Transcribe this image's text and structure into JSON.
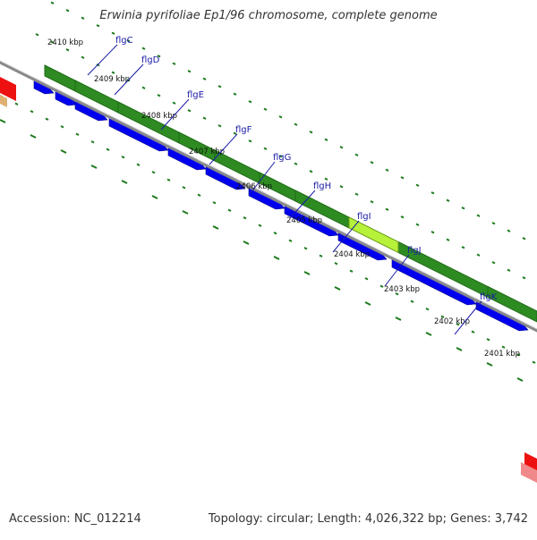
{
  "title": "Erwinia pyrifoliae Ep1/96 chromosome, complete genome",
  "footer": {
    "accession": "Accession: NC_012214",
    "summary": "Topology: circular; Length: 4,026,322 bp; Genes: 3,742"
  },
  "position_labels": [
    "2410 kbp",
    "2409 kbp",
    "2408 kbp",
    "2407 kbp",
    "2406 kbp",
    "2405 kbp",
    "2404 kbp",
    "2403 kbp",
    "2402 kbp",
    "2401 kbp"
  ],
  "genes": [
    "flgC",
    "flgD",
    "flgE",
    "flgF",
    "flgG",
    "flgH",
    "flgI",
    "flgJ",
    "flgK"
  ],
  "colors": {
    "cds_track": "#2e8b22",
    "highlight_segment": "#b6f23a",
    "gene_arrow": "#0000ee",
    "tick": "#1a7a1a",
    "backbone": "#888888",
    "label": "#1a1aa6",
    "offscreen_feature": "#ee1111"
  }
}
